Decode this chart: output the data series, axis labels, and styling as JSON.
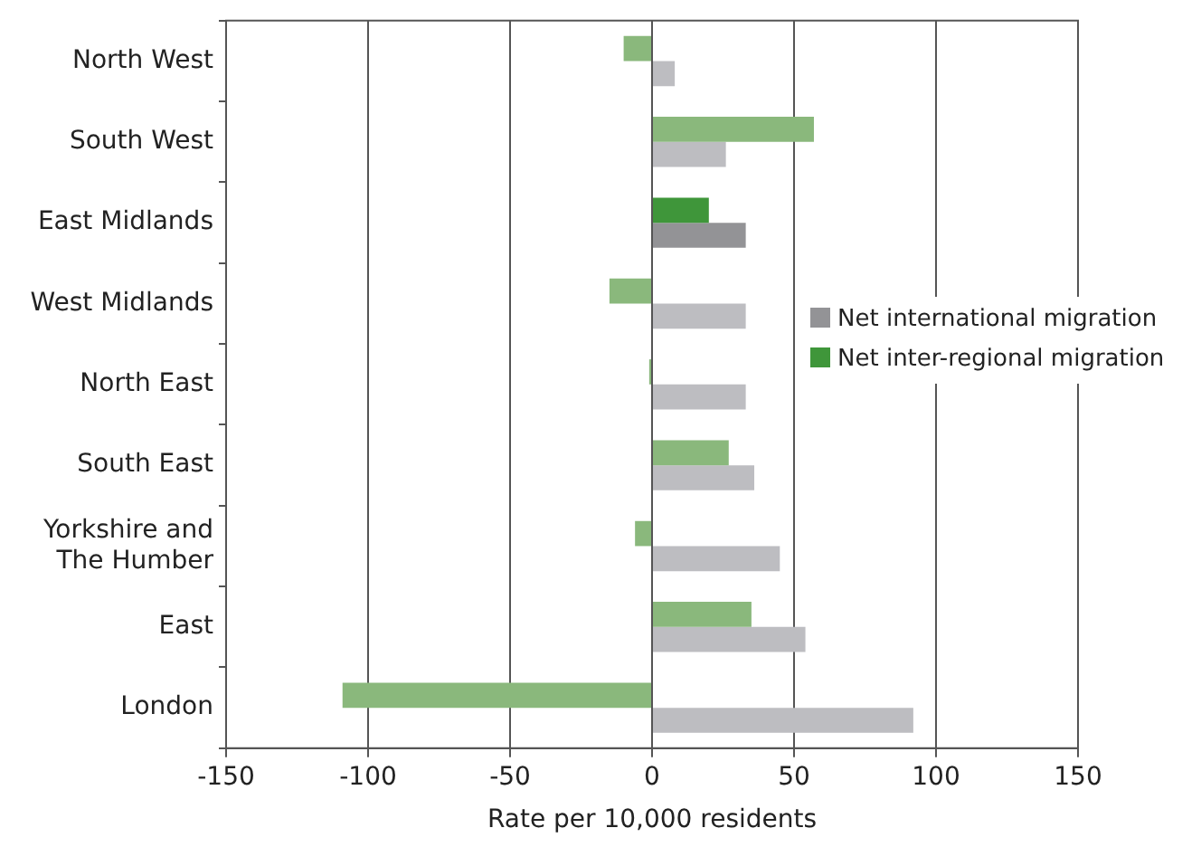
{
  "chart_data": {
    "type": "bar",
    "orientation": "horizontal",
    "xlabel": "Rate per 10,000 residents",
    "categories": [
      "North West",
      "South West",
      "East Midlands",
      "West Midlands",
      "North East",
      "South East",
      "Yorkshire and The Humber",
      "East",
      "London"
    ],
    "series": [
      {
        "name": "Net international migration",
        "color": "#939396",
        "colors": [
          "#bdbdc1",
          "#bdbdc1",
          "#939396",
          "#bdbdc1",
          "#bdbdc1",
          "#bdbdc1",
          "#bdbdc1",
          "#bdbdc1",
          "#bdbdc1"
        ],
        "values": [
          8,
          26,
          33,
          33,
          33,
          36,
          45,
          54,
          92
        ]
      },
      {
        "name": "Net inter-regional migration",
        "color": "#3f963a",
        "colors": [
          "#8ab87c",
          "#8ab87c",
          "#3f963a",
          "#8ab87c",
          "#8ab87c",
          "#8ab87c",
          "#8ab87c",
          "#8ab87c",
          "#8ab87c"
        ],
        "values": [
          -10,
          57,
          20,
          -15,
          -1,
          27,
          -6,
          35,
          -109
        ]
      }
    ],
    "xlim": [
      -150,
      150
    ],
    "xticks": [
      -150,
      -100,
      -50,
      0,
      50,
      100,
      150
    ],
    "grid": "x",
    "legend": "right"
  }
}
